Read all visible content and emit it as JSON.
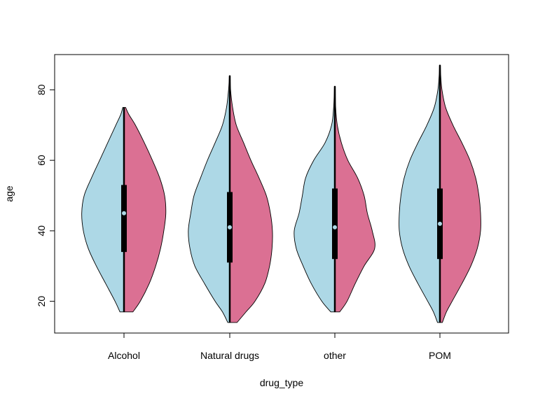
{
  "chart_data": {
    "type": "split-violin",
    "xlabel": "drug_type",
    "ylabel": "age",
    "ylim": [
      11,
      90
    ],
    "yticks": [
      20,
      40,
      60,
      80
    ],
    "categories": [
      "Alcohol",
      "Natural drugs",
      "other",
      "POM"
    ],
    "colors": {
      "left": "#add8e6",
      "right": "#db7093",
      "box": "#000000",
      "median": "#add8e6"
    },
    "violins": [
      {
        "category": "Alcohol",
        "min": 17,
        "max": 75,
        "q1": 34,
        "median": 45,
        "q3": 53,
        "left": [
          [
            17,
            0.1
          ],
          [
            20,
            0.22
          ],
          [
            25,
            0.45
          ],
          [
            30,
            0.68
          ],
          [
            35,
            0.88
          ],
          [
            40,
            1.0
          ],
          [
            45,
            1.04
          ],
          [
            50,
            0.98
          ],
          [
            55,
            0.8
          ],
          [
            60,
            0.6
          ],
          [
            65,
            0.4
          ],
          [
            70,
            0.2
          ],
          [
            73,
            0.08
          ],
          [
            75,
            0.03
          ]
        ],
        "right": [
          [
            17,
            0.22
          ],
          [
            20,
            0.4
          ],
          [
            25,
            0.62
          ],
          [
            30,
            0.78
          ],
          [
            35,
            0.9
          ],
          [
            40,
            0.98
          ],
          [
            45,
            1.03
          ],
          [
            50,
            1.0
          ],
          [
            55,
            0.88
          ],
          [
            60,
            0.7
          ],
          [
            65,
            0.5
          ],
          [
            70,
            0.28
          ],
          [
            73,
            0.12
          ],
          [
            75,
            0.04
          ]
        ]
      },
      {
        "category": "Natural drugs",
        "min": 14,
        "max": 84,
        "q1": 31,
        "median": 41,
        "q3": 51,
        "left": [
          [
            14,
            0.05
          ],
          [
            17,
            0.18
          ],
          [
            20,
            0.36
          ],
          [
            25,
            0.62
          ],
          [
            30,
            0.86
          ],
          [
            35,
            0.98
          ],
          [
            40,
            1.02
          ],
          [
            45,
            0.96
          ],
          [
            50,
            0.88
          ],
          [
            55,
            0.72
          ],
          [
            60,
            0.55
          ],
          [
            65,
            0.36
          ],
          [
            70,
            0.18
          ],
          [
            75,
            0.08
          ],
          [
            80,
            0.03
          ],
          [
            84,
            0.01
          ]
        ],
        "right": [
          [
            14,
            0.18
          ],
          [
            17,
            0.4
          ],
          [
            20,
            0.62
          ],
          [
            25,
            0.86
          ],
          [
            30,
            0.98
          ],
          [
            35,
            1.04
          ],
          [
            40,
            1.05
          ],
          [
            45,
            1.0
          ],
          [
            50,
            0.9
          ],
          [
            55,
            0.72
          ],
          [
            60,
            0.52
          ],
          [
            65,
            0.34
          ],
          [
            70,
            0.16
          ],
          [
            75,
            0.07
          ],
          [
            80,
            0.02
          ],
          [
            84,
            0.01
          ]
        ]
      },
      {
        "category": "other",
        "min": 17,
        "max": 81,
        "q1": 32,
        "median": 41,
        "q3": 52,
        "left": [
          [
            17,
            0.1
          ],
          [
            20,
            0.32
          ],
          [
            25,
            0.58
          ],
          [
            30,
            0.78
          ],
          [
            35,
            0.95
          ],
          [
            40,
            1.0
          ],
          [
            45,
            0.88
          ],
          [
            50,
            0.8
          ],
          [
            55,
            0.72
          ],
          [
            60,
            0.52
          ],
          [
            65,
            0.24
          ],
          [
            70,
            0.08
          ],
          [
            75,
            0.03
          ],
          [
            81,
            0.01
          ]
        ],
        "right": [
          [
            17,
            0.12
          ],
          [
            20,
            0.3
          ],
          [
            25,
            0.5
          ],
          [
            30,
            0.72
          ],
          [
            35,
            0.98
          ],
          [
            40,
            0.92
          ],
          [
            45,
            0.8
          ],
          [
            50,
            0.72
          ],
          [
            55,
            0.56
          ],
          [
            60,
            0.32
          ],
          [
            65,
            0.16
          ],
          [
            70,
            0.06
          ],
          [
            75,
            0.02
          ],
          [
            81,
            0.01
          ]
        ]
      },
      {
        "category": "POM",
        "min": 14,
        "max": 87,
        "q1": 32,
        "median": 42,
        "q3": 52,
        "left": [
          [
            14,
            0.06
          ],
          [
            17,
            0.16
          ],
          [
            20,
            0.3
          ],
          [
            25,
            0.54
          ],
          [
            30,
            0.76
          ],
          [
            35,
            0.92
          ],
          [
            40,
            1.0
          ],
          [
            45,
            1.0
          ],
          [
            50,
            0.96
          ],
          [
            55,
            0.88
          ],
          [
            60,
            0.74
          ],
          [
            65,
            0.54
          ],
          [
            70,
            0.32
          ],
          [
            75,
            0.14
          ],
          [
            80,
            0.05
          ],
          [
            84,
            0.02
          ],
          [
            87,
            0.01
          ]
        ],
        "right": [
          [
            14,
            0.06
          ],
          [
            17,
            0.16
          ],
          [
            20,
            0.3
          ],
          [
            25,
            0.54
          ],
          [
            30,
            0.76
          ],
          [
            35,
            0.92
          ],
          [
            40,
            1.0
          ],
          [
            45,
            1.0
          ],
          [
            50,
            0.96
          ],
          [
            55,
            0.88
          ],
          [
            60,
            0.74
          ],
          [
            65,
            0.54
          ],
          [
            70,
            0.32
          ],
          [
            75,
            0.14
          ],
          [
            80,
            0.05
          ],
          [
            84,
            0.02
          ],
          [
            87,
            0.01
          ]
        ]
      }
    ]
  }
}
